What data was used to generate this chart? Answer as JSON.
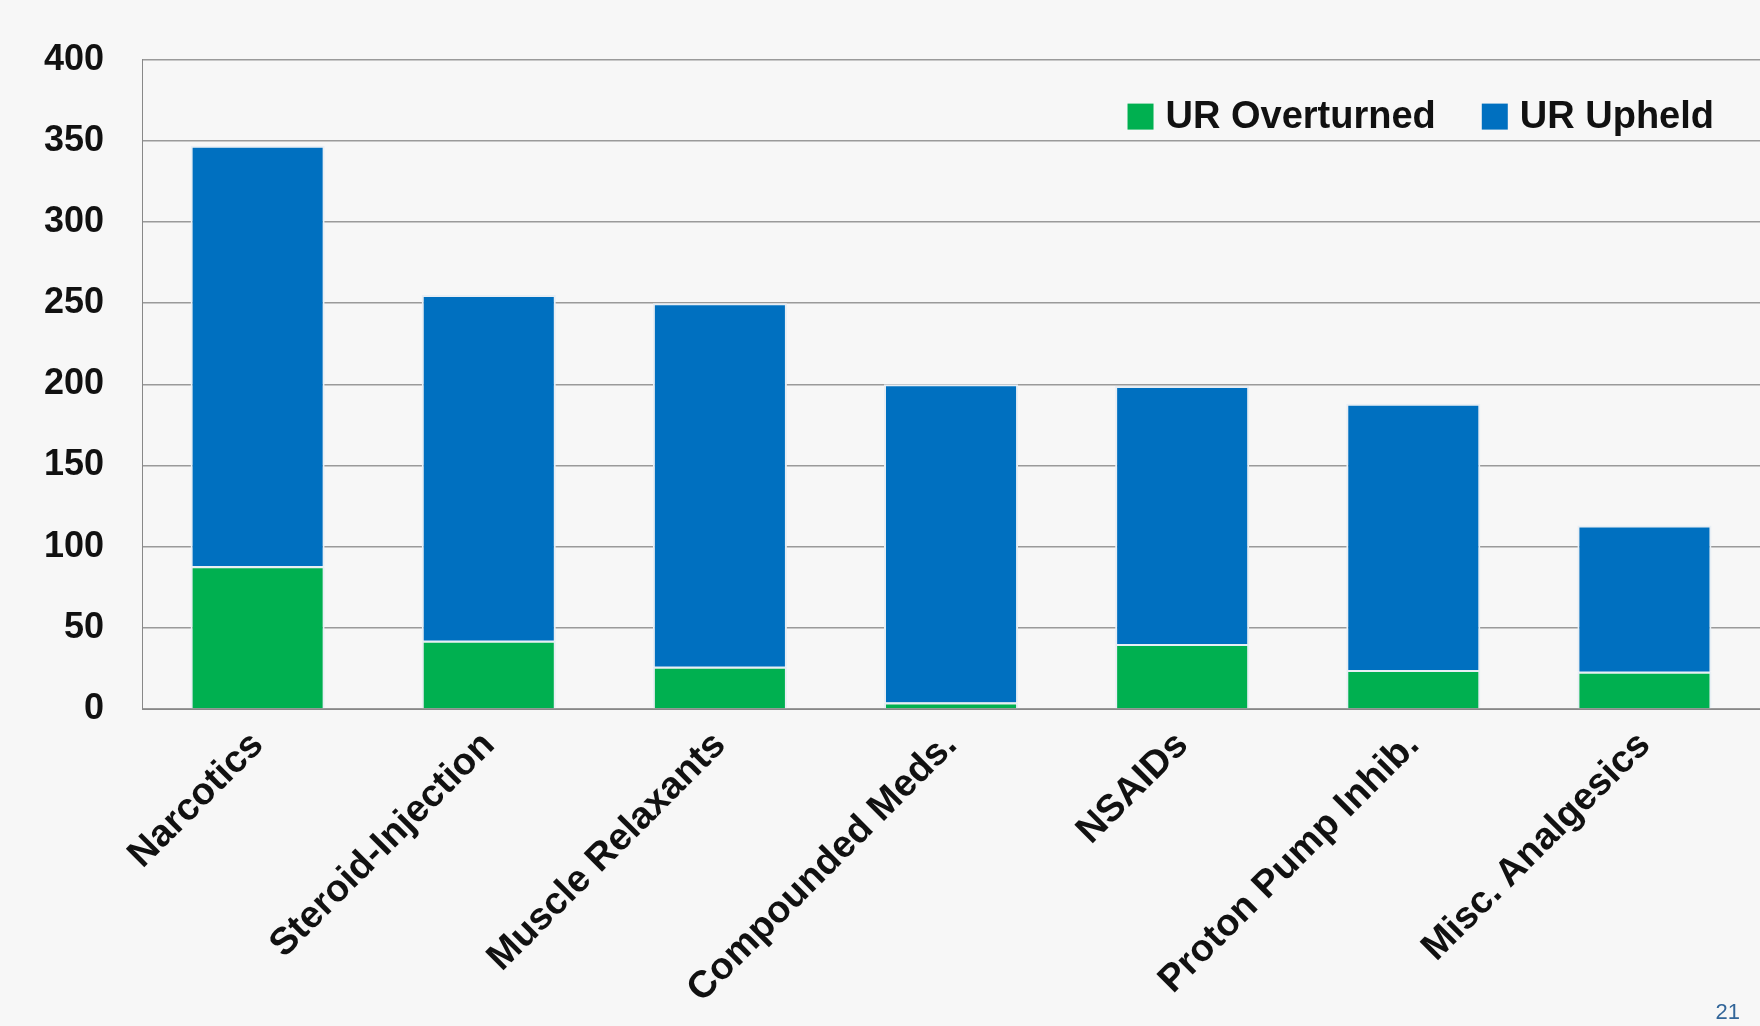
{
  "chart_data": {
    "type": "bar",
    "stacked": true,
    "categories": [
      "Narcotics",
      "Steroid-Injection",
      "Muscle Relaxants",
      "Compounded Meds.",
      "NSAIDs",
      "Proton Pump Inhib.",
      "Misc. Analgesics"
    ],
    "series": [
      {
        "name": "UR Overturned",
        "color": "#00b050",
        "values": [
          88,
          42,
          26,
          4,
          40,
          24,
          23
        ]
      },
      {
        "name": "UR Upheld",
        "color": "#0070c0",
        "values": [
          259,
          213,
          224,
          196,
          159,
          164,
          90
        ]
      }
    ],
    "ylim": [
      0,
      400
    ],
    "yticks": [
      0,
      50,
      100,
      150,
      200,
      250,
      300,
      350,
      400
    ],
    "grid": "y",
    "legend": "top right",
    "annotations": [
      "21"
    ]
  }
}
